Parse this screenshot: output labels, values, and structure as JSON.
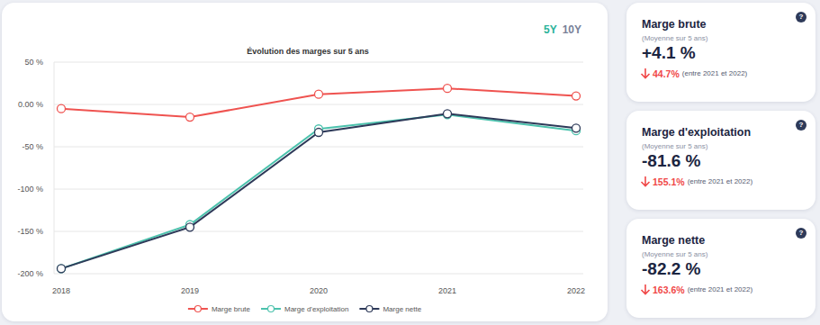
{
  "chart_data": {
    "type": "line",
    "title": "Évolution des marges sur 5 ans",
    "categories": [
      "2018",
      "2019",
      "2020",
      "2021",
      "2022"
    ],
    "series": [
      {
        "name": "Marge brute",
        "color": "#ef5350",
        "values": [
          -5,
          -15,
          12,
          19,
          10
        ]
      },
      {
        "name": "Marge d'exploitation",
        "color": "#4cc2ad",
        "values": [
          -194,
          -142,
          -29,
          -12,
          -31
        ]
      },
      {
        "name": "Marge nette",
        "color": "#2e3a59",
        "values": [
          -194,
          -145,
          -33,
          -11,
          -28
        ]
      }
    ],
    "ylim": [
      -200,
      50
    ],
    "yticks": [
      {
        "value": -200,
        "label": "-200 %"
      },
      {
        "value": -150,
        "label": "-150 %"
      },
      {
        "value": -100,
        "label": "-100 %"
      },
      {
        "value": -50,
        "label": "-50 %"
      },
      {
        "value": 0,
        "label": "0.00 %"
      },
      {
        "value": 50,
        "label": "50 %"
      }
    ],
    "grid": true,
    "legend": "bottom",
    "marker": "circle"
  },
  "period_buttons": [
    "5Y",
    "10Y"
  ],
  "cards": [
    {
      "title": "Marge brute",
      "subtitle": "(Moyenne sur 5 ans)",
      "value": "+4.1 %",
      "change": "44.7%",
      "period": "(entre 2021 et 2022)",
      "help": "?"
    },
    {
      "title": "Marge d'exploitation",
      "subtitle": "(Moyenne sur 5 ans)",
      "value": "-81.6 %",
      "change": "155.1%",
      "period": "(entre 2021 et 2022)",
      "help": "?"
    },
    {
      "title": "Marge nette",
      "subtitle": "(Moyenne sur 5 ans)",
      "value": "-82.2 %",
      "change": "163.6%",
      "period": "(entre 2021 et 2022)",
      "help": "?"
    }
  ]
}
